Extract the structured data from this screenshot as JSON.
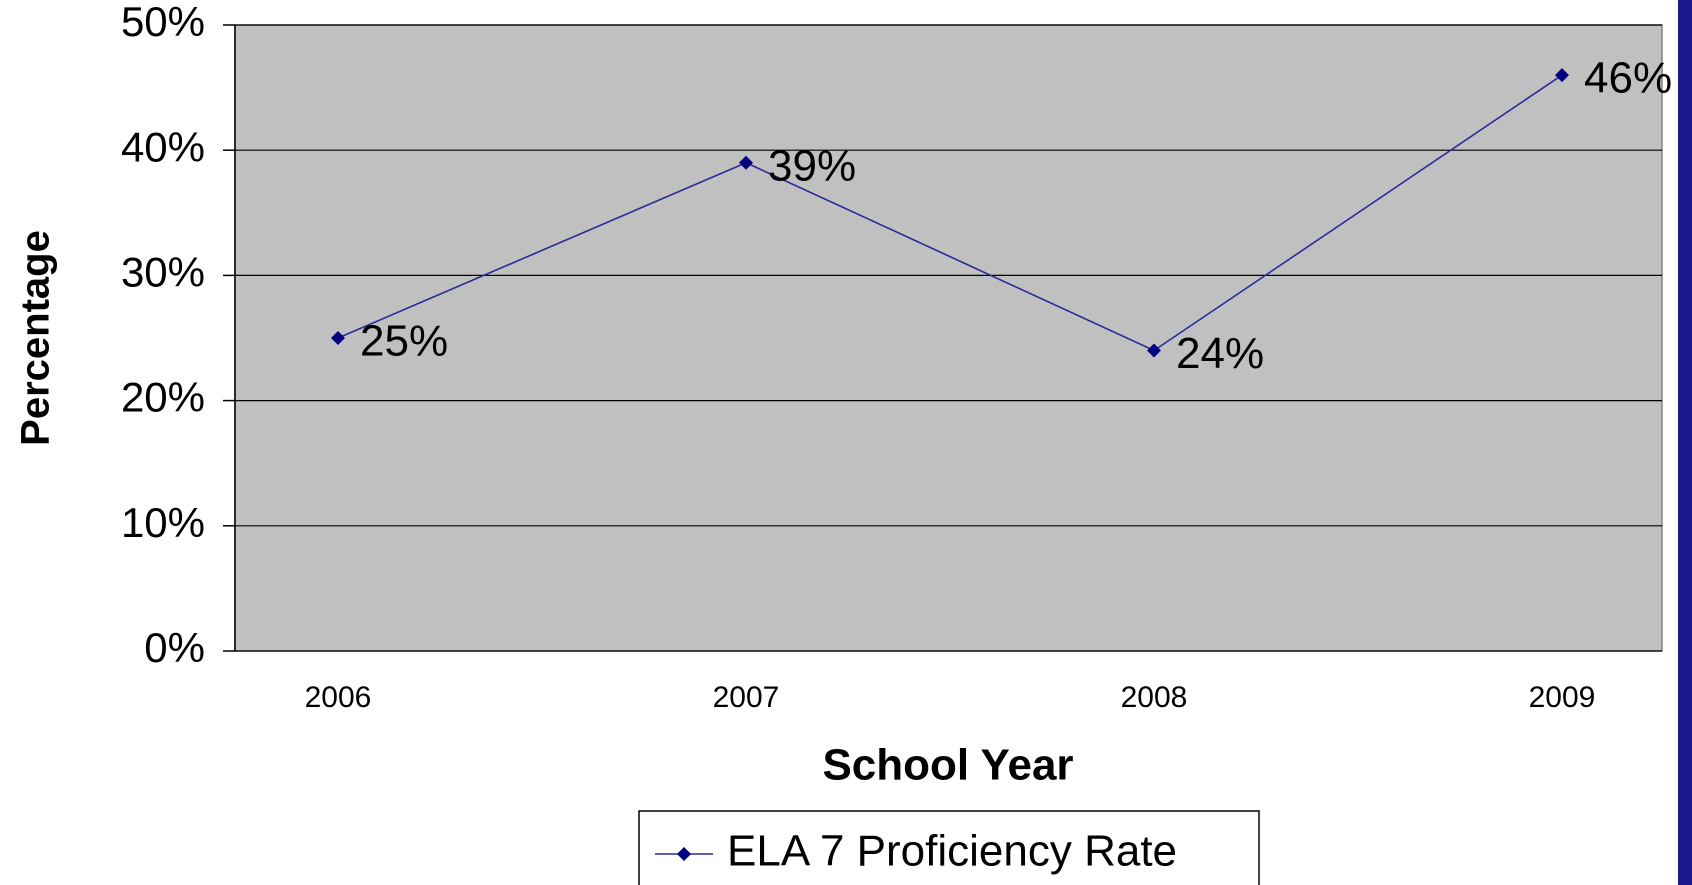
{
  "chart_data": {
    "type": "line",
    "x_label": "School Year",
    "y_label": "Percentage",
    "categories": [
      "2006",
      "2007",
      "2008",
      "2009"
    ],
    "series": [
      {
        "name": "ELA 7 Proficiency Rate",
        "color": "#000080",
        "values": [
          25,
          39,
          24,
          46
        ],
        "value_labels": [
          "25%",
          "39%",
          "24%",
          "46%"
        ]
      }
    ],
    "ylim": [
      0,
      50
    ],
    "yticks": [
      {
        "value": 0,
        "label": "0%"
      },
      {
        "value": 10,
        "label": "10%"
      },
      {
        "value": 20,
        "label": "20%"
      },
      {
        "value": 30,
        "label": "30%"
      },
      {
        "value": 40,
        "label": "40%"
      },
      {
        "value": 50,
        "label": "50%"
      }
    ],
    "grid": true,
    "legend": "bottom"
  }
}
